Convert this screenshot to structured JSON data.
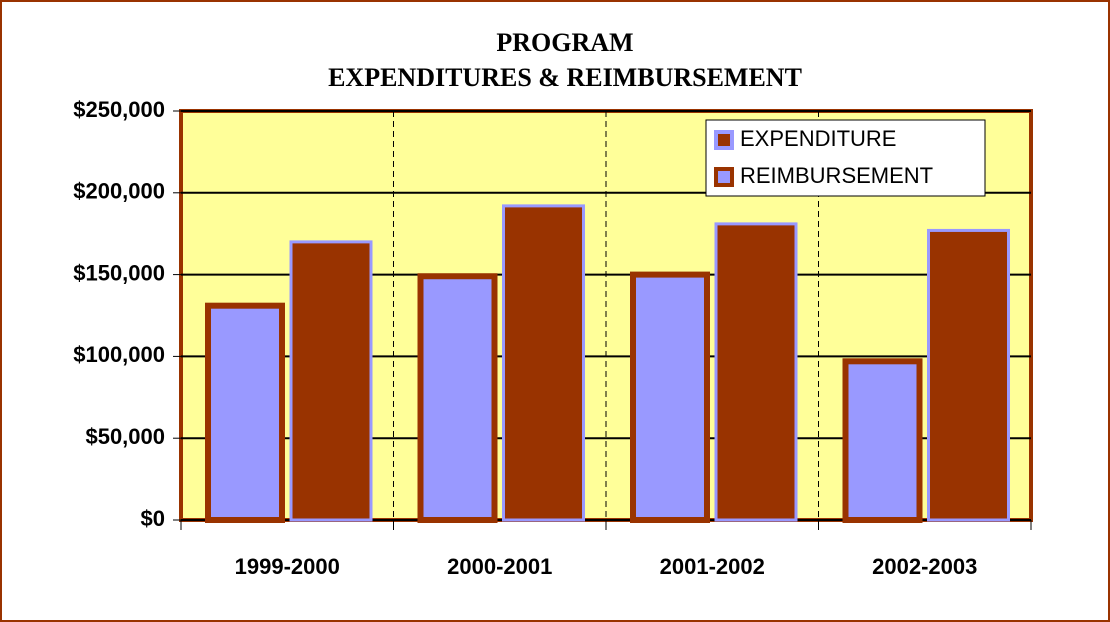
{
  "chart_data": {
    "type": "bar",
    "title": [
      "PROGRAM",
      "EXPENDITURES & REIMBURSEMENT"
    ],
    "categories": [
      "1999-2000",
      "2000-2001",
      "2001-2002",
      "2002-2003"
    ],
    "series": [
      {
        "name": "REIMBURSEMENT",
        "color": "#9999ff",
        "edgecolor": "#993300",
        "values": [
          131000,
          149000,
          150000,
          97000
        ]
      },
      {
        "name": "EXPENDITURE",
        "color": "#993300",
        "edgecolor": "#9999ff",
        "values": [
          170000,
          192000,
          181000,
          177000
        ]
      }
    ],
    "ylim": [
      0,
      250000
    ],
    "yticks": [
      {
        "value": 0,
        "label": "$0"
      },
      {
        "value": 50000,
        "label": "$50,000"
      },
      {
        "value": 100000,
        "label": "$100,000"
      },
      {
        "value": 150000,
        "label": "$150,000"
      },
      {
        "value": 200000,
        "label": "$200,000"
      },
      {
        "value": 250000,
        "label": "$250,000"
      }
    ],
    "grid": true,
    "legend": "upper-right"
  }
}
